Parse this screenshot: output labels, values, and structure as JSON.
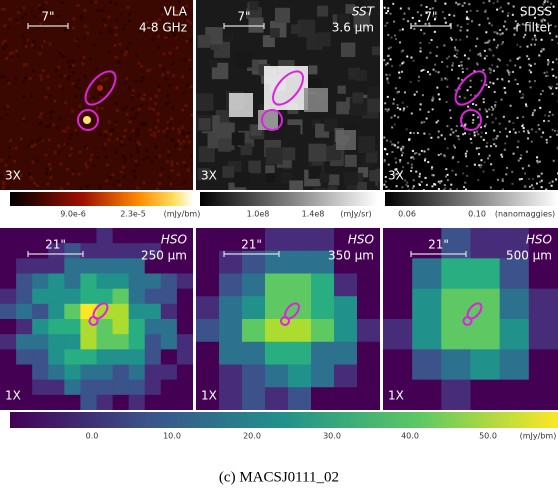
{
  "panels": [
    {
      "label": "VLA",
      "sublabel": "4-8 GHz",
      "scale": "7\"",
      "zoom": "3X"
    },
    {
      "label": "SST",
      "sublabel": "3.6 μm",
      "scale": "7\"",
      "zoom": "3X"
    },
    {
      "label": "SDSS",
      "sublabel": "r filter",
      "scale": "7\"",
      "zoom": "3X"
    },
    {
      "label": "HSO",
      "sublabel": "250 μm",
      "scale": "21\"",
      "zoom": "1X"
    },
    {
      "label": "HSO",
      "sublabel": "350 μm",
      "scale": "21\"",
      "zoom": "1X"
    },
    {
      "label": "HSO",
      "sublabel": "500 μm",
      "scale": "21\"",
      "zoom": "1X"
    }
  ],
  "colorbars": [
    {
      "ticks": [
        "9.0e-6",
        "2.3e-5"
      ],
      "unit": "(mJy/bm)"
    },
    {
      "ticks": [
        "1.0e8",
        "1.4e8"
      ],
      "unit": "(mJy/sr)"
    },
    {
      "ticks": [
        "0.06",
        "0.10"
      ],
      "unit": "(nanomaggies)"
    },
    {
      "ticks": [
        "0.0",
        "10.0",
        "20.0",
        "30.0",
        "40.0",
        "50.0"
      ],
      "unit": "(mJy/bm)"
    }
  ],
  "caption": "(c) MACSJ0111_02"
}
